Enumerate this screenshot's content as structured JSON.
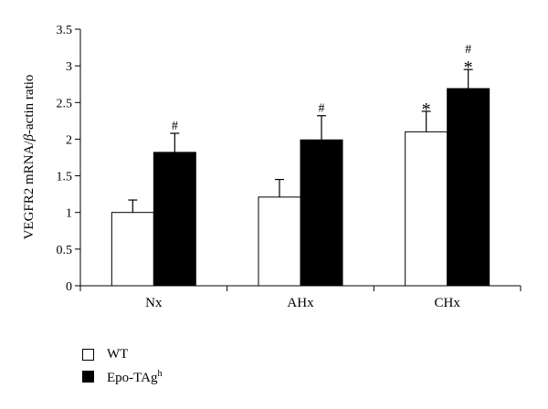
{
  "chart_data": {
    "type": "bar",
    "categories": [
      "Nx",
      "AHx",
      "CHx"
    ],
    "series": [
      {
        "name": "WT",
        "values": [
          1.0,
          1.21,
          2.1
        ],
        "errors": [
          0.17,
          0.24,
          0.28
        ],
        "color": "#ffffff",
        "marks": [
          "",
          "",
          "*"
        ]
      },
      {
        "name": "Epo-TAg",
        "values": [
          1.82,
          1.99,
          2.69
        ],
        "errors": [
          0.26,
          0.33,
          0.26
        ],
        "color": "#000000",
        "marks": [
          "#",
          "#",
          "#*"
        ]
      }
    ],
    "ylabel_parts": [
      "VEGFR2 mRNA/",
      "β",
      "-actin ratio"
    ],
    "ylim": [
      0,
      3.5
    ],
    "yticks": [
      "0",
      "0.5",
      "1",
      "1.5",
      "2",
      "2.5",
      "3",
      "3.5"
    ],
    "legend_position": "bottom-left",
    "grid": false
  },
  "legend": {
    "wt_label": "WT",
    "epo_label": "Epo-TAg",
    "epo_superscript": "h"
  }
}
